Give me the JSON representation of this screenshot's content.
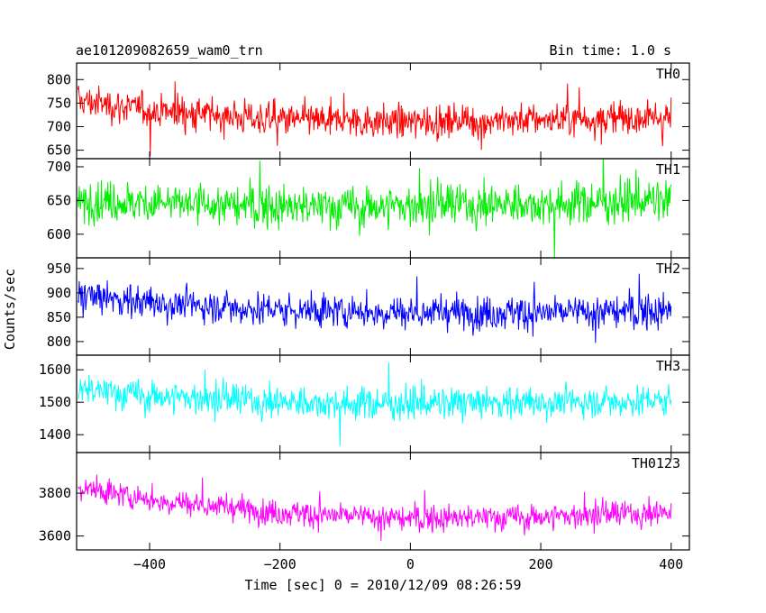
{
  "header": {
    "title": "ae101209082659_wam0_trn",
    "bin_time": "Bin time: 1.0 s"
  },
  "chart_data": {
    "type": "line",
    "title": "ae101209082659_wam0_trn",
    "xlabel": "Time [sec] 0 = 2010/12/09 08:26:59",
    "ylabel": "Counts/sec",
    "xlim": [
      -512,
      428
    ],
    "x_ticks": [
      -400,
      -200,
      0,
      200,
      400
    ],
    "x_tick_labels": [
      "−400",
      "−200",
      "0",
      "200",
      "400"
    ],
    "x_data_range": [
      -510,
      400
    ],
    "bin_time_s": 1.0,
    "grid": false,
    "legend": "none",
    "panels": [
      {
        "name": "TH0",
        "color": "#ff0000",
        "ylim": [
          632,
          835
        ],
        "y_ticks": [
          650,
          700,
          750,
          800
        ],
        "trend": [
          [
            -510,
            755
          ],
          [
            -400,
            735
          ],
          [
            -200,
            715
          ],
          [
            0,
            710
          ],
          [
            200,
            715
          ],
          [
            400,
            720
          ]
        ],
        "noise": 32,
        "range": [
          632,
          835
        ]
      },
      {
        "name": "TH1",
        "color": "#00ee00",
        "ylim": [
          565,
          712
        ],
        "y_ticks": [
          600,
          650,
          700
        ],
        "trend": [
          [
            -510,
            650
          ],
          [
            -200,
            640
          ],
          [
            0,
            642
          ],
          [
            200,
            645
          ],
          [
            400,
            650
          ]
        ],
        "noise": 28,
        "range": [
          565,
          712
        ]
      },
      {
        "name": "TH2",
        "color": "#0000ff",
        "ylim": [
          772,
          972
        ],
        "y_ticks": [
          800,
          850,
          900,
          950
        ],
        "trend": [
          [
            -510,
            895
          ],
          [
            -400,
            880
          ],
          [
            -200,
            865
          ],
          [
            0,
            860
          ],
          [
            200,
            860
          ],
          [
            400,
            862
          ]
        ],
        "noise": 32,
        "range": [
          772,
          972
        ]
      },
      {
        "name": "TH3",
        "color": "#00ffff",
        "ylim": [
          1345,
          1645
        ],
        "y_ticks": [
          1400,
          1500,
          1600
        ],
        "trend": [
          [
            -510,
            1540
          ],
          [
            -400,
            1520
          ],
          [
            -200,
            1500
          ],
          [
            0,
            1495
          ],
          [
            200,
            1500
          ],
          [
            400,
            1505
          ]
        ],
        "noise": 45,
        "range": [
          1345,
          1645
        ]
      },
      {
        "name": "TH0123",
        "color": "#ff00ff",
        "ylim": [
          3535,
          3990
        ],
        "y_ticks": [
          3600,
          3800
        ],
        "trend": [
          [
            -510,
            3830
          ],
          [
            -400,
            3770
          ],
          [
            -200,
            3710
          ],
          [
            0,
            3680
          ],
          [
            200,
            3690
          ],
          [
            400,
            3710
          ]
        ],
        "noise": 55,
        "range": [
          3535,
          3990
        ]
      }
    ]
  }
}
